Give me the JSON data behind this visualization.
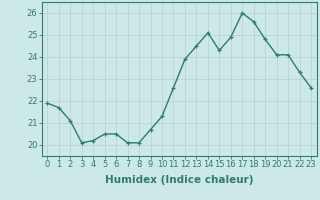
{
  "x": [
    0,
    1,
    2,
    3,
    4,
    5,
    6,
    7,
    8,
    9,
    10,
    11,
    12,
    13,
    14,
    15,
    16,
    17,
    18,
    19,
    20,
    21,
    22,
    23
  ],
  "y": [
    21.9,
    21.7,
    21.1,
    20.1,
    20.2,
    20.5,
    20.5,
    20.1,
    20.1,
    20.7,
    21.3,
    22.6,
    23.9,
    24.5,
    25.1,
    24.3,
    24.9,
    26.0,
    25.6,
    24.8,
    24.1,
    24.1,
    23.3,
    22.6
  ],
  "line_color": "#2e7d6e",
  "marker": "+",
  "bg_color": "#cce8e8",
  "grid_color": "#b8d4d4",
  "xlabel": "Humidex (Indice chaleur)",
  "ylim": [
    19.5,
    26.5
  ],
  "xlim": [
    -0.5,
    23.5
  ],
  "yticks": [
    20,
    21,
    22,
    23,
    24,
    25,
    26
  ],
  "xticks": [
    0,
    1,
    2,
    3,
    4,
    5,
    6,
    7,
    8,
    9,
    10,
    11,
    12,
    13,
    14,
    15,
    16,
    17,
    18,
    19,
    20,
    21,
    22,
    23
  ],
  "tick_fontsize": 6,
  "xlabel_fontsize": 7.5,
  "spine_color": "#2e7d6e",
  "linewidth": 1.0,
  "markersize": 3.5,
  "markeredgewidth": 0.9
}
